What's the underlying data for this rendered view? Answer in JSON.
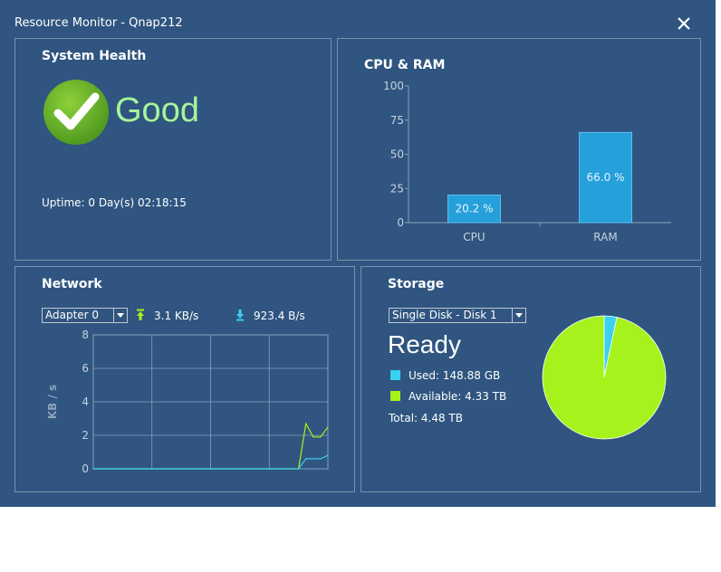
{
  "window": {
    "title": "Resource Monitor - Qnap212"
  },
  "system_health": {
    "title": "System Health",
    "status": "Good",
    "uptime": "Uptime: 0 Day(s) 02:18:15"
  },
  "cpu_ram": {
    "title": "CPU & RAM",
    "chart_data": {
      "type": "bar",
      "categories": [
        "CPU",
        "RAM"
      ],
      "values": [
        20.2,
        66.0
      ],
      "value_labels": [
        "20.2 %",
        "66.0 %"
      ],
      "ylim": [
        0,
        100
      ],
      "yticks": [
        "0",
        "25",
        "50",
        "75",
        "100"
      ],
      "bar_color": "#26a0da"
    }
  },
  "network": {
    "title": "Network",
    "adapter": "Adapter 0",
    "upload": "3.1 KB/s",
    "download": "923.4 B/s",
    "chart_data": {
      "type": "line",
      "ylabel": "KB / s",
      "ylim": [
        0,
        8
      ],
      "yticks": [
        "0",
        "2",
        "4",
        "6",
        "8"
      ],
      "x": [
        0,
        1,
        2,
        3,
        4,
        5,
        6,
        7,
        8,
        9,
        10,
        11,
        12,
        13,
        14,
        15,
        16,
        17,
        18,
        19,
        20,
        21,
        22,
        23,
        24,
        25,
        26,
        27,
        28,
        29,
        30,
        31,
        32
      ],
      "series": [
        {
          "color": "#a6f21c",
          "values": [
            0,
            0,
            0,
            0,
            0,
            0,
            0,
            0,
            0,
            0,
            0,
            0,
            0,
            0,
            0,
            0,
            0,
            0,
            0,
            0,
            0,
            0,
            0,
            0,
            0,
            0,
            0,
            0,
            0,
            2.7,
            1.9,
            1.9,
            2.5
          ]
        },
        {
          "color": "#3ad0f0",
          "values": [
            0,
            0,
            0,
            0,
            0,
            0,
            0,
            0,
            0,
            0,
            0,
            0,
            0,
            0,
            0,
            0,
            0,
            0,
            0,
            0,
            0,
            0,
            0,
            0,
            0,
            0,
            0,
            0,
            0,
            0.6,
            0.6,
            0.6,
            0.8
          ]
        }
      ]
    }
  },
  "storage": {
    "title": "Storage",
    "disk": "Single Disk - Disk  1",
    "status": "Ready",
    "used": "Used: 148.88 GB",
    "available": "Available: 4.33 TB",
    "total": "Total: 4.48 TB",
    "chart_data": {
      "type": "pie",
      "labels": [
        "Used",
        "Available"
      ],
      "values": [
        148.88,
        4330
      ],
      "colors": [
        "#3ad0f0",
        "#a6f21c"
      ]
    }
  }
}
